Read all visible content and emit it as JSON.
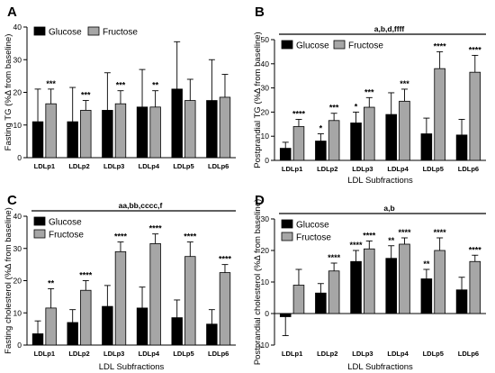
{
  "figure": {
    "colors": {
      "glucose": "#000000",
      "fructose": "#a6a6a6"
    }
  },
  "chart_data": [
    {
      "panel": "A",
      "type": "bar",
      "ylabel": "Fasting TG (%Δ from baseline)",
      "xlabel": "",
      "ylim": [
        0,
        40
      ],
      "yticks": [
        0,
        10,
        20,
        30,
        40
      ],
      "categories": [
        "LDLp1",
        "LDLp2",
        "LDLp3",
        "LDLp4",
        "LDLp5",
        "LDLp6"
      ],
      "legend": "top-left",
      "significance": "",
      "series": [
        {
          "name": "Glucose",
          "values": [
            11,
            11,
            14.5,
            15.5,
            21,
            17.5
          ],
          "errors": [
            10,
            10.5,
            11.5,
            11.5,
            14.5,
            12.5
          ],
          "stars": [
            "",
            "",
            "",
            "",
            "",
            ""
          ]
        },
        {
          "name": "Fructose",
          "values": [
            16.5,
            14.5,
            16.5,
            15.5,
            17.5,
            18.5
          ],
          "errors": [
            4.5,
            3,
            4,
            5,
            6.5,
            7
          ],
          "stars": [
            "***",
            "***",
            "***",
            "**",
            "",
            ""
          ]
        }
      ]
    },
    {
      "panel": "B",
      "type": "bar",
      "ylabel": "Postprandial TG (%Δ from baseline)",
      "xlabel": "LDL Subfractions",
      "ylim": [
        0,
        50
      ],
      "yticks": [
        0,
        10,
        20,
        30,
        40,
        50
      ],
      "categories": [
        "LDLp1",
        "LDLp2",
        "LDLp3",
        "LDLp4",
        "LDLp5",
        "LDLp6"
      ],
      "legend": "top-left",
      "significance": "a,b,d,ffff",
      "series": [
        {
          "name": "Glucose",
          "values": [
            5,
            8,
            15.5,
            19,
            11,
            10.5
          ],
          "errors": [
            2.5,
            3,
            4.5,
            9,
            6.5,
            6.5
          ],
          "stars": [
            "",
            "*",
            "*",
            "",
            "",
            ""
          ]
        },
        {
          "name": "Fructose",
          "values": [
            14,
            16.5,
            22,
            24.5,
            38,
            36.5
          ],
          "errors": [
            3,
            3,
            4,
            5,
            7,
            7
          ],
          "stars": [
            "****",
            "***",
            "***",
            "***",
            "****",
            "****"
          ]
        }
      ]
    },
    {
      "panel": "C",
      "type": "bar",
      "ylabel": "Fasting cholesterol (%Δ from baseline)",
      "xlabel": "LDL Subfractions",
      "ylim": [
        0,
        40
      ],
      "yticks": [
        0,
        10,
        20,
        30,
        40
      ],
      "categories": [
        "LDLp1",
        "LDLp2",
        "LDLp3",
        "LDLp4",
        "LDLp5",
        "LDLp6"
      ],
      "legend": "top-left",
      "significance": "aa,bb,cccc,f",
      "series": [
        {
          "name": "Glucose",
          "values": [
            3.5,
            7,
            12,
            11.5,
            8.5,
            6.5
          ],
          "errors": [
            4,
            4,
            6.5,
            6.5,
            5.5,
            4.5
          ],
          "stars": [
            "",
            "",
            "",
            "",
            "",
            ""
          ]
        },
        {
          "name": "Fructose",
          "values": [
            11.5,
            17,
            29,
            31.5,
            27.5,
            22.5
          ],
          "errors": [
            6,
            3,
            3,
            3,
            4.5,
            2.5
          ],
          "stars": [
            "**",
            "****",
            "****",
            "****",
            "****",
            "****"
          ]
        }
      ]
    },
    {
      "panel": "D",
      "type": "bar",
      "ylabel": "Postprandial cholesterol (%Δ from baseline)",
      "xlabel": "LDL Subfractions",
      "ylim": [
        -10,
        30
      ],
      "yticks": [
        -10,
        0,
        10,
        20,
        30
      ],
      "categories": [
        "LDLp1",
        "LDLp2",
        "LDLp3",
        "LDLp4",
        "LDLp5",
        "LDLp6"
      ],
      "legend": "top-left",
      "significance": "a,b",
      "series": [
        {
          "name": "Glucose",
          "values": [
            -1,
            6.5,
            16.5,
            17.5,
            11,
            7.5
          ],
          "errors": [
            6,
            3,
            3.5,
            4,
            3,
            4
          ],
          "stars": [
            "",
            "",
            "****",
            "**",
            "**",
            ""
          ]
        },
        {
          "name": "Fructose",
          "values": [
            9,
            13.5,
            20.5,
            22,
            20,
            16.5
          ],
          "errors": [
            5,
            2.5,
            2.5,
            2,
            4,
            2
          ],
          "stars": [
            "",
            "****",
            "****",
            "****",
            "****",
            "****"
          ]
        }
      ]
    }
  ]
}
